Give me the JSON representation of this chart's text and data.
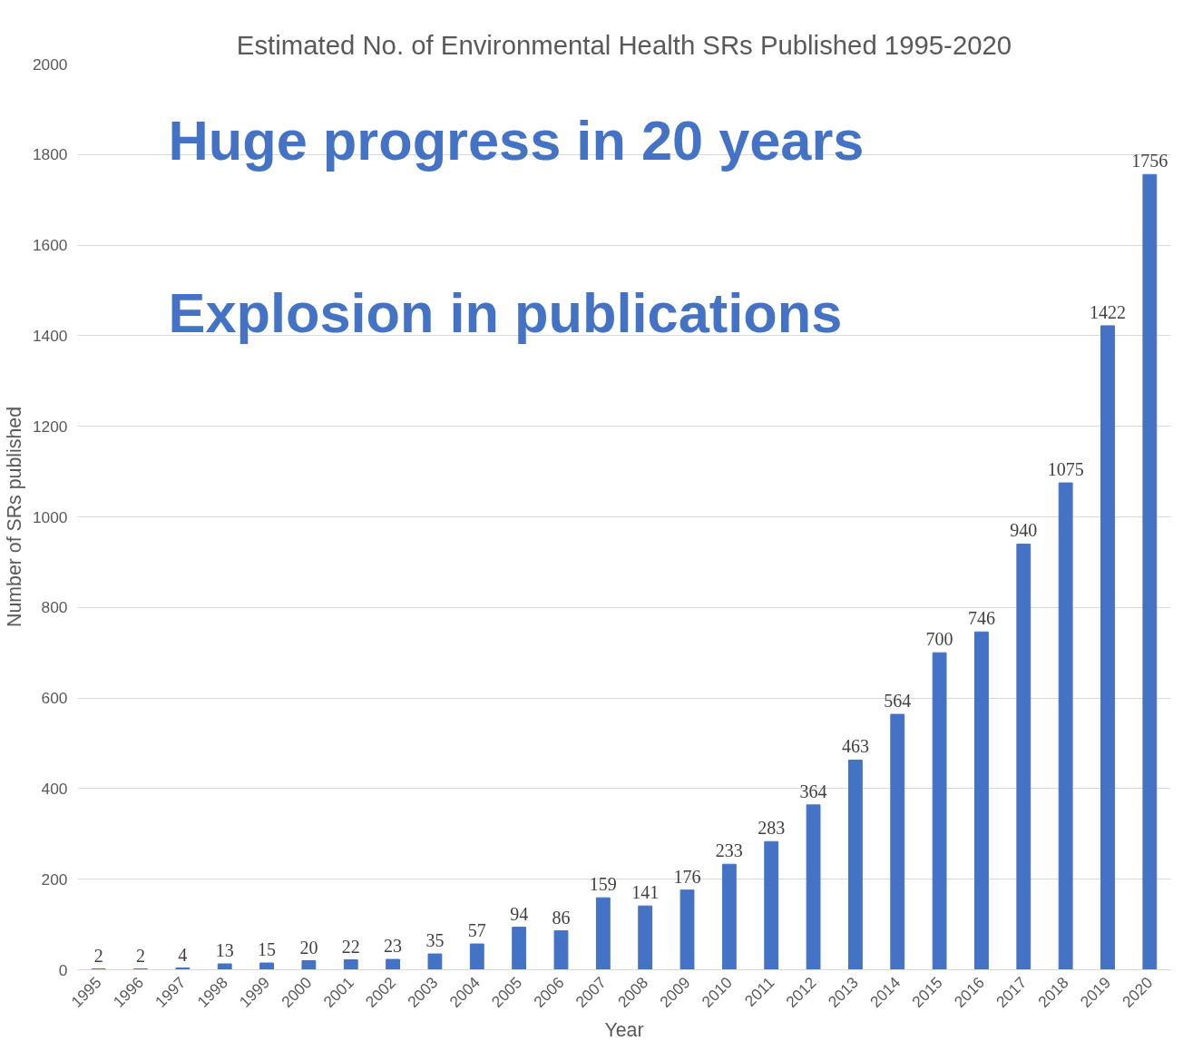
{
  "chart_data": {
    "type": "bar",
    "title": "Estimated No. of Environmental Health SRs Published 1995-2020",
    "xlabel": "Year",
    "ylabel": "Number of SRs published",
    "categories": [
      "1995",
      "1996",
      "1997",
      "1998",
      "1999",
      "2000",
      "2001",
      "2002",
      "2003",
      "2004",
      "2005",
      "2006",
      "2007",
      "2008",
      "2009",
      "2010",
      "2011",
      "2012",
      "2013",
      "2014",
      "2015",
      "2016",
      "2017",
      "2018",
      "2019",
      "2020"
    ],
    "values": [
      2,
      2,
      4,
      13,
      15,
      20,
      22,
      23,
      35,
      57,
      94,
      86,
      159,
      141,
      176,
      233,
      283,
      364,
      463,
      564,
      700,
      746,
      940,
      1075,
      1422,
      1756
    ],
    "color": "#4472c4",
    "ylim": [
      0,
      2000
    ],
    "yticks": [
      0,
      200,
      400,
      600,
      800,
      1000,
      1200,
      1400,
      1600,
      1800,
      2000
    ],
    "grid": "y",
    "data_labels": true,
    "annotations": [
      "Huge progress in 20 years",
      "Explosion in publications"
    ]
  }
}
